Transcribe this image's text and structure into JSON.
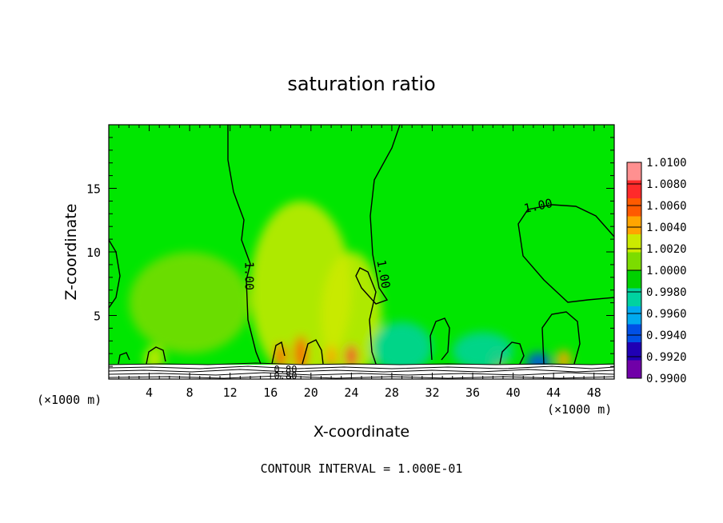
{
  "chart_data": {
    "type": "heatmap",
    "title": "saturation ratio",
    "xlabel": "X-coordinate",
    "ylabel": "Z-coordinate",
    "x_unit_left": "(×1000 m)",
    "x_unit_right": "(×1000 m)",
    "xlim": [
      0,
      50
    ],
    "ylim": [
      0,
      20
    ],
    "x_ticks": [
      4,
      8,
      12,
      16,
      20,
      24,
      28,
      32,
      36,
      40,
      44,
      48
    ],
    "y_ticks": [
      5,
      10,
      15
    ],
    "footer": "CONTOUR INTERVAL = 1.000E-01",
    "contour_labels": [
      "1.00",
      "1.00",
      "1.00",
      "0.80",
      "0.80"
    ],
    "colorbar": {
      "labels": [
        "1.0100",
        "1.0080",
        "1.0060",
        "1.0040",
        "1.0020",
        "1.0000",
        "0.9980",
        "0.9960",
        "0.9940",
        "0.9920",
        "0.9900"
      ],
      "colors": [
        "#ff9090",
        "#ff2a2a",
        "#ff5a00",
        "#ffa500",
        "#ccea00",
        "#7cdc00",
        "#00d200",
        "#00d2a0",
        "#00aaf0",
        "#0050e6",
        "#2000b4",
        "#7000a8"
      ]
    },
    "background_color": "#00e600",
    "blobs": [
      {
        "x": 19,
        "z": 7,
        "rx": 5,
        "rz": 7,
        "value": 1.003
      },
      {
        "x": 24,
        "z": 5,
        "rx": 3,
        "rz": 5,
        "value": 1.002
      },
      {
        "x": 8,
        "z": 6,
        "rx": 6,
        "rz": 4,
        "value": 1.0015
      },
      {
        "x": 17,
        "z": 1.8,
        "rx": 0.6,
        "rz": 1.0,
        "value": 1.007
      },
      {
        "x": 19,
        "z": 2.0,
        "rx": 0.7,
        "rz": 1.4,
        "value": 1.006
      },
      {
        "x": 22,
        "z": 1.7,
        "rx": 0.6,
        "rz": 0.9,
        "value": 1.005
      },
      {
        "x": 24,
        "z": 1.8,
        "rx": 0.6,
        "rz": 0.9,
        "value": 1.008
      },
      {
        "x": 4.5,
        "z": 1.6,
        "rx": 1.0,
        "rz": 1.0,
        "value": 1.0035
      },
      {
        "x": 38.5,
        "z": 1.5,
        "rx": 0.8,
        "rz": 0.8,
        "value": 1.004
      },
      {
        "x": 45,
        "z": 1.5,
        "rx": 0.8,
        "rz": 0.8,
        "value": 1.0045
      },
      {
        "x": 29,
        "z": 2.5,
        "rx": 3,
        "rz": 2,
        "value": 0.997
      },
      {
        "x": 42.5,
        "z": 1.3,
        "rx": 1.2,
        "rz": 0.8,
        "value": 0.9935
      },
      {
        "x": 37,
        "z": 2.2,
        "rx": 3,
        "rz": 1.5,
        "value": 0.9975
      }
    ]
  }
}
